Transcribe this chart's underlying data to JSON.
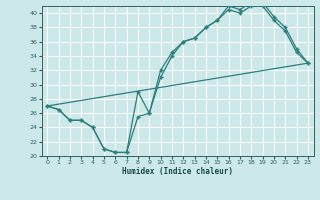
{
  "xlabel": "Humidex (Indice chaleur)",
  "bg_color": "#cce8e8",
  "grid_color": "#ffffff",
  "line_color": "#2d7d7d",
  "xlim": [
    -0.5,
    23.5
  ],
  "ylim": [
    20,
    41
  ],
  "xticks": [
    0,
    1,
    2,
    3,
    4,
    5,
    6,
    7,
    8,
    9,
    10,
    11,
    12,
    13,
    14,
    15,
    16,
    17,
    18,
    19,
    20,
    21,
    22,
    23
  ],
  "yticks": [
    20,
    22,
    24,
    26,
    28,
    30,
    32,
    34,
    36,
    38,
    40
  ],
  "line1_x": [
    0,
    1,
    2,
    3,
    4,
    5,
    6,
    7,
    8,
    9,
    10,
    11,
    12,
    13,
    14,
    15,
    16,
    17,
    18,
    19,
    20,
    21,
    22,
    23
  ],
  "line1_y": [
    27,
    26.5,
    25,
    25,
    24,
    21,
    20.5,
    20.5,
    29,
    26,
    32,
    34.5,
    36,
    36.5,
    38,
    39,
    41,
    40.5,
    41.5,
    41.5,
    39.5,
    38,
    35,
    33
  ],
  "line2_x": [
    0,
    1,
    2,
    3,
    4,
    5,
    6,
    7,
    8,
    9,
    10,
    11,
    12,
    13,
    14,
    15,
    16,
    17,
    18,
    19,
    20,
    21,
    22,
    23
  ],
  "line2_y": [
    27,
    26.5,
    25,
    25,
    24,
    21,
    20.5,
    20.5,
    25.5,
    26,
    31,
    34,
    36,
    36.5,
    38,
    39,
    40.5,
    40,
    41,
    41,
    39,
    37.5,
    34.5,
    33
  ],
  "line3_x": [
    0,
    23
  ],
  "line3_y": [
    27,
    33
  ]
}
